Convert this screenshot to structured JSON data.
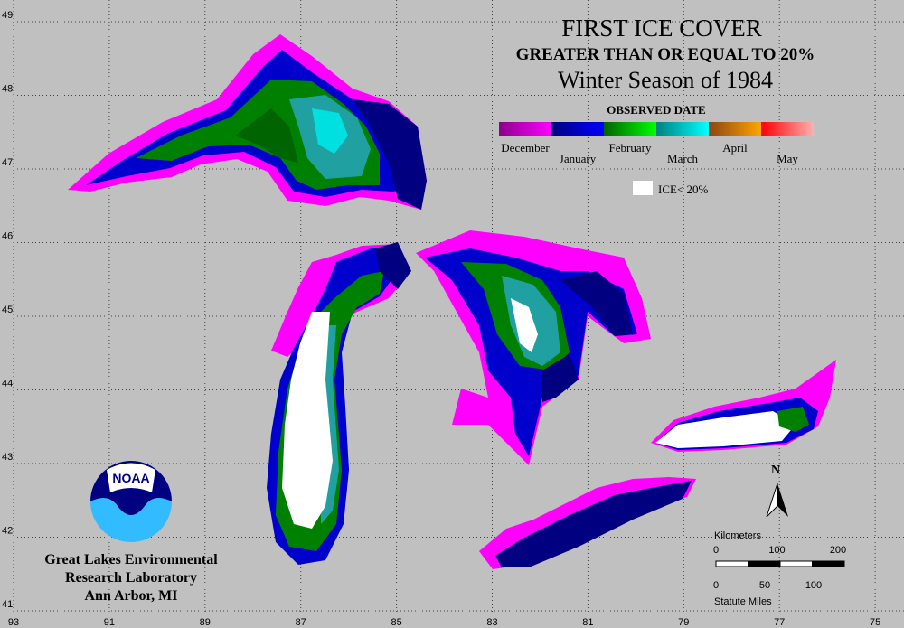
{
  "title": "FIRST ICE COVER",
  "subtitle": "GREATER THAN OR EQUAL TO 20%",
  "season": "Winter Season of 1984",
  "legend": {
    "title": "OBSERVED DATE",
    "months": [
      "December",
      "January",
      "February",
      "March",
      "April",
      "May"
    ],
    "low_ice": "ICE< 20%"
  },
  "north": "N",
  "scale": {
    "km_label": "Kilometers",
    "km_ticks": [
      "0",
      "100",
      "200"
    ],
    "mile_label": "Statute Miles",
    "mile_ticks": [
      "0",
      "50",
      "100"
    ]
  },
  "logo": "NOAA",
  "credits": [
    "Great Lakes Environmental",
    "Research Laboratory",
    "Ann Arbor, MI"
  ],
  "latitudes": [
    "49",
    "48",
    "47",
    "46",
    "45",
    "44",
    "43",
    "42",
    "41"
  ],
  "longitudes": [
    "93",
    "91",
    "89",
    "87",
    "85",
    "83",
    "81",
    "79",
    "77",
    "75"
  ]
}
